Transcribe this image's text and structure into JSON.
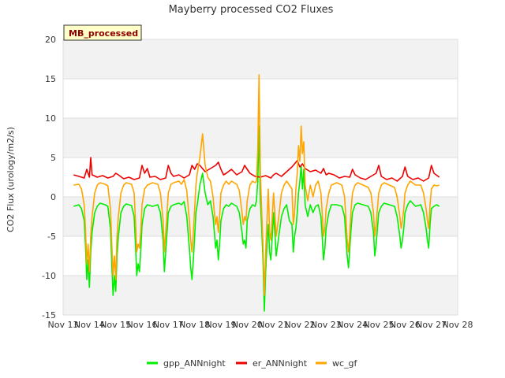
{
  "chart_data": {
    "type": "line",
    "title": "Mayberry processed CO2 Fluxes",
    "badge": "MB_processed",
    "xlabel": "",
    "ylabel": "CO2 Flux (urology/m2/s)",
    "x_range": [
      13,
      28
    ],
    "ylim": [
      -15,
      20
    ],
    "x_ticks": [
      {
        "value": 13,
        "label": "Nov 13"
      },
      {
        "value": 14,
        "label": "Nov 14"
      },
      {
        "value": 15,
        "label": "Nov 15"
      },
      {
        "value": 16,
        "label": "Nov 16"
      },
      {
        "value": 17,
        "label": "Nov 17"
      },
      {
        "value": 18,
        "label": "Nov 18"
      },
      {
        "value": 19,
        "label": "Nov 19"
      },
      {
        "value": 20,
        "label": "Nov 20"
      },
      {
        "value": 21,
        "label": "Nov 21"
      },
      {
        "value": 22,
        "label": "Nov 22"
      },
      {
        "value": 23,
        "label": "Nov 23"
      },
      {
        "value": 24,
        "label": "Nov 24"
      },
      {
        "value": 25,
        "label": "Nov 25"
      },
      {
        "value": 26,
        "label": "Nov 26"
      },
      {
        "value": 27,
        "label": "Nov 27"
      },
      {
        "value": 28,
        "label": "Nov 28"
      }
    ],
    "y_ticks": [
      {
        "value": -15,
        "label": "-15"
      },
      {
        "value": -10,
        "label": "-10"
      },
      {
        "value": -5,
        "label": "-5"
      },
      {
        "value": 0,
        "label": "0"
      },
      {
        "value": 5,
        "label": "5"
      },
      {
        "value": 10,
        "label": "10"
      },
      {
        "value": 15,
        "label": "15"
      },
      {
        "value": 20,
        "label": "20"
      }
    ],
    "series": [
      {
        "name": "gpp_ANNnight",
        "color": "#00ee00",
        "x": [
          13.4,
          13.6,
          13.7,
          13.8,
          13.85,
          13.9,
          13.95,
          14.0,
          14.05,
          14.1,
          14.2,
          14.3,
          14.4,
          14.6,
          14.7,
          14.8,
          14.85,
          14.9,
          14.95,
          15.0,
          15.05,
          15.1,
          15.2,
          15.3,
          15.4,
          15.6,
          15.7,
          15.75,
          15.8,
          15.85,
          15.9,
          15.95,
          16.0,
          16.1,
          16.2,
          16.4,
          16.6,
          16.7,
          16.8,
          16.85,
          16.9,
          16.95,
          17.0,
          17.1,
          17.2,
          17.4,
          17.5,
          17.6,
          17.7,
          17.8,
          17.85,
          17.9,
          17.95,
          18.0,
          18.05,
          18.1,
          18.2,
          18.3,
          18.4,
          18.5,
          18.6,
          18.7,
          18.75,
          18.8,
          18.85,
          18.9,
          18.95,
          19.0,
          19.1,
          19.2,
          19.3,
          19.4,
          19.6,
          19.7,
          19.8,
          19.85,
          19.9,
          19.95,
          20.0,
          20.1,
          20.2,
          20.3,
          20.35,
          20.4,
          20.45,
          20.5,
          20.55,
          20.6,
          20.65,
          20.7,
          20.75,
          20.8,
          20.85,
          20.9,
          20.95,
          21.0,
          21.05,
          21.1,
          21.2,
          21.3,
          21.4,
          21.5,
          21.6,
          21.7,
          21.75,
          21.8,
          21.85,
          21.9,
          21.95,
          22.0,
          22.05,
          22.1,
          22.15,
          22.2,
          22.3,
          22.4,
          22.5,
          22.6,
          22.7,
          22.8,
          22.85,
          22.9,
          22.95,
          23.0,
          23.1,
          23.2,
          23.4,
          23.6,
          23.7,
          23.75,
          23.8,
          23.85,
          23.9,
          23.95,
          24.0,
          24.1,
          24.2,
          24.4,
          24.6,
          24.7,
          24.8,
          24.85,
          24.9,
          24.95,
          25.0,
          25.1,
          25.2,
          25.4,
          25.6,
          25.7,
          25.8,
          25.85,
          25.9,
          25.95,
          26.0,
          26.1,
          26.2,
          26.4,
          26.6,
          26.7,
          26.8,
          26.85,
          26.9,
          26.95,
          27.0,
          27.1,
          27.2,
          27.3
        ],
        "y": [
          -1.2,
          -1.0,
          -1.5,
          -3.0,
          -6.0,
          -10.5,
          -8.0,
          -11.5,
          -7.0,
          -4.5,
          -2.0,
          -1.2,
          -0.8,
          -1.0,
          -1.2,
          -4.0,
          -8.5,
          -12.5,
          -10.0,
          -12.0,
          -7.5,
          -5.0,
          -2.0,
          -1.2,
          -0.9,
          -1.1,
          -2.5,
          -6.0,
          -10.0,
          -8.5,
          -9.5,
          -7.0,
          -3.5,
          -1.5,
          -1.0,
          -1.2,
          -1.0,
          -2.0,
          -5.5,
          -9.5,
          -7.0,
          -4.5,
          -2.0,
          -1.2,
          -1.0,
          -0.8,
          -1.0,
          -0.6,
          -2.5,
          -6.5,
          -9.0,
          -10.5,
          -8.0,
          -5.0,
          -2.0,
          -1.0,
          1.5,
          3.0,
          0.5,
          -1.0,
          -0.5,
          -2.5,
          -4.5,
          -6.5,
          -5.5,
          -8.0,
          -6.0,
          -3.0,
          -1.5,
          -1.0,
          -1.2,
          -0.8,
          -1.2,
          -2.0,
          -4.5,
          -6.0,
          -5.5,
          -6.5,
          -3.0,
          -1.5,
          -1.0,
          -1.2,
          -0.5,
          2.0,
          9.0,
          -0.5,
          -4.0,
          -8.0,
          -14.5,
          -9.5,
          -6.0,
          -3.5,
          -7.0,
          -8.0,
          -5.0,
          -2.0,
          -4.5,
          -7.5,
          -5.0,
          -2.5,
          -1.5,
          -1.0,
          -3.0,
          -3.5,
          -7.0,
          -5.0,
          -4.0,
          -2.0,
          0.5,
          2.0,
          4.0,
          1.0,
          3.5,
          -1.0,
          -2.5,
          -1.0,
          -2.0,
          -1.2,
          -1.0,
          -2.5,
          -5.0,
          -8.0,
          -6.5,
          -4.0,
          -2.0,
          -1.0,
          -1.0,
          -1.2,
          -2.5,
          -5.0,
          -7.5,
          -9.0,
          -6.5,
          -4.0,
          -2.0,
          -1.0,
          -0.8,
          -1.0,
          -1.2,
          -2.0,
          -4.5,
          -7.5,
          -6.0,
          -4.0,
          -2.0,
          -1.2,
          -0.8,
          -1.0,
          -1.2,
          -2.5,
          -5.0,
          -6.5,
          -5.5,
          -4.0,
          -2.0,
          -1.0,
          -0.5,
          -1.2,
          -1.0,
          -2.0,
          -4.0,
          -5.5,
          -6.5,
          -3.5,
          -1.5,
          -1.2,
          -1.0,
          -1.2
        ]
      },
      {
        "name": "er_ANNnight",
        "color": "#ee0000",
        "x": [
          13.4,
          13.6,
          13.8,
          13.9,
          14.0,
          14.05,
          14.1,
          14.3,
          14.5,
          14.7,
          14.9,
          15.0,
          15.1,
          15.3,
          15.5,
          15.7,
          15.9,
          16.0,
          16.1,
          16.2,
          16.3,
          16.5,
          16.7,
          16.9,
          17.0,
          17.1,
          17.2,
          17.4,
          17.6,
          17.8,
          17.9,
          18.0,
          18.1,
          18.2,
          18.4,
          18.6,
          18.8,
          18.9,
          19.0,
          19.1,
          19.2,
          19.4,
          19.6,
          19.8,
          19.9,
          20.0,
          20.1,
          20.3,
          20.5,
          20.7,
          20.9,
          21.0,
          21.1,
          21.3,
          21.5,
          21.7,
          21.9,
          22.0,
          22.1,
          22.2,
          22.4,
          22.6,
          22.8,
          22.9,
          23.0,
          23.1,
          23.3,
          23.5,
          23.7,
          23.9,
          24.0,
          24.1,
          24.3,
          24.5,
          24.7,
          24.9,
          25.0,
          25.1,
          25.3,
          25.5,
          25.7,
          25.9,
          26.0,
          26.1,
          26.3,
          26.5,
          26.7,
          26.9,
          27.0,
          27.1,
          27.3
        ],
        "y": [
          2.8,
          2.6,
          2.4,
          3.5,
          2.5,
          5.0,
          2.8,
          2.5,
          2.7,
          2.4,
          2.6,
          3.0,
          2.8,
          2.3,
          2.5,
          2.2,
          2.4,
          4.0,
          3.0,
          3.6,
          2.5,
          2.6,
          2.2,
          2.4,
          4.0,
          3.0,
          2.6,
          2.8,
          2.4,
          2.8,
          4.0,
          3.5,
          4.2,
          4.0,
          3.2,
          3.6,
          4.0,
          4.4,
          3.5,
          2.8,
          3.0,
          3.5,
          2.8,
          3.2,
          4.0,
          3.5,
          3.0,
          2.6,
          2.5,
          2.7,
          2.4,
          2.8,
          3.0,
          2.6,
          3.2,
          3.8,
          4.6,
          3.8,
          4.2,
          3.6,
          3.2,
          3.4,
          3.0,
          3.6,
          2.8,
          3.0,
          2.8,
          2.4,
          2.6,
          2.5,
          3.5,
          2.8,
          2.4,
          2.2,
          2.6,
          3.0,
          4.0,
          2.6,
          2.2,
          2.4,
          2.0,
          2.6,
          3.8,
          2.6,
          2.2,
          2.4,
          2.0,
          2.4,
          4.0,
          3.0,
          2.5
        ]
      },
      {
        "name": "wc_gf",
        "color": "#ffa500",
        "x": [
          13.4,
          13.6,
          13.7,
          13.8,
          13.85,
          13.9,
          13.95,
          14.0,
          14.05,
          14.1,
          14.2,
          14.3,
          14.4,
          14.6,
          14.7,
          14.8,
          14.85,
          14.9,
          14.95,
          15.0,
          15.05,
          15.1,
          15.2,
          15.3,
          15.4,
          15.6,
          15.7,
          15.75,
          15.8,
          15.85,
          15.9,
          15.95,
          16.0,
          16.1,
          16.2,
          16.4,
          16.6,
          16.7,
          16.8,
          16.85,
          16.9,
          16.95,
          17.0,
          17.1,
          17.2,
          17.4,
          17.5,
          17.6,
          17.7,
          17.8,
          17.85,
          17.9,
          17.95,
          18.0,
          18.05,
          18.1,
          18.2,
          18.3,
          18.4,
          18.5,
          18.6,
          18.7,
          18.75,
          18.8,
          18.85,
          18.9,
          18.95,
          19.0,
          19.1,
          19.2,
          19.3,
          19.4,
          19.6,
          19.7,
          19.8,
          19.85,
          19.9,
          19.95,
          20.0,
          20.1,
          20.2,
          20.3,
          20.35,
          20.4,
          20.45,
          20.5,
          20.55,
          20.6,
          20.65,
          20.7,
          20.75,
          20.8,
          20.85,
          20.9,
          20.95,
          21.0,
          21.05,
          21.1,
          21.2,
          21.3,
          21.4,
          21.5,
          21.6,
          21.7,
          21.75,
          21.8,
          21.85,
          21.9,
          21.95,
          22.0,
          22.05,
          22.1,
          22.15,
          22.2,
          22.3,
          22.4,
          22.5,
          22.6,
          22.7,
          22.8,
          22.85,
          22.9,
          22.95,
          23.0,
          23.1,
          23.2,
          23.4,
          23.6,
          23.7,
          23.75,
          23.8,
          23.85,
          23.9,
          23.95,
          24.0,
          24.1,
          24.2,
          24.4,
          24.6,
          24.7,
          24.8,
          24.85,
          24.9,
          24.95,
          25.0,
          25.1,
          25.2,
          25.4,
          25.6,
          25.7,
          25.8,
          25.85,
          25.9,
          25.95,
          26.0,
          26.1,
          26.2,
          26.4,
          26.6,
          26.7,
          26.8,
          26.85,
          26.9,
          26.95,
          27.0,
          27.1,
          27.2,
          27.3
        ],
        "y": [
          1.5,
          1.6,
          1.0,
          -1.0,
          -4.0,
          -8.5,
          -6.0,
          -9.5,
          -5.0,
          -2.5,
          0.5,
          1.5,
          1.8,
          1.6,
          1.4,
          -1.5,
          -6.0,
          -10.0,
          -7.5,
          -10.5,
          -5.0,
          -2.5,
          0.5,
          1.5,
          1.8,
          1.6,
          0.5,
          -3.0,
          -7.0,
          -6.0,
          -6.5,
          -4.5,
          -1.0,
          1.0,
          1.5,
          1.8,
          1.6,
          0.5,
          -3.0,
          -7.0,
          -4.5,
          -2.0,
          0.5,
          1.6,
          1.8,
          2.0,
          1.6,
          2.2,
          0.8,
          -3.0,
          -5.5,
          -7.0,
          -4.5,
          -1.5,
          1.5,
          3.0,
          5.0,
          8.0,
          4.0,
          2.5,
          2.0,
          0.0,
          -2.0,
          -3.5,
          -2.5,
          -4.5,
          -2.5,
          0.5,
          1.5,
          2.0,
          1.6,
          2.0,
          1.6,
          0.8,
          -2.0,
          -3.5,
          -2.5,
          -3.0,
          -0.5,
          1.5,
          2.0,
          1.8,
          2.0,
          6.0,
          15.5,
          3.0,
          -2.0,
          -6.0,
          -12.5,
          -7.0,
          -3.0,
          1.0,
          -4.5,
          -5.5,
          -2.5,
          0.5,
          -2.0,
          -5.0,
          -2.5,
          0.5,
          1.5,
          2.0,
          1.5,
          1.0,
          -3.5,
          -2.0,
          1.0,
          3.0,
          6.5,
          4.5,
          9.0,
          5.5,
          7.0,
          1.5,
          -0.5,
          1.5,
          0.0,
          1.5,
          2.0,
          0.5,
          -2.0,
          -5.0,
          -4.0,
          -1.5,
          0.5,
          1.5,
          1.8,
          1.5,
          0.0,
          -2.5,
          -5.5,
          -7.0,
          -4.5,
          -1.5,
          0.5,
          1.5,
          1.8,
          1.5,
          1.2,
          0.5,
          -2.0,
          -5.0,
          -3.5,
          -1.5,
          0.5,
          1.5,
          1.8,
          1.5,
          1.2,
          0.0,
          -2.5,
          -4.0,
          -3.0,
          -1.5,
          0.5,
          1.5,
          2.0,
          1.5,
          1.5,
          0.5,
          -1.5,
          -3.0,
          -4.0,
          -1.0,
          1.0,
          1.5,
          1.4,
          1.5
        ]
      }
    ]
  }
}
